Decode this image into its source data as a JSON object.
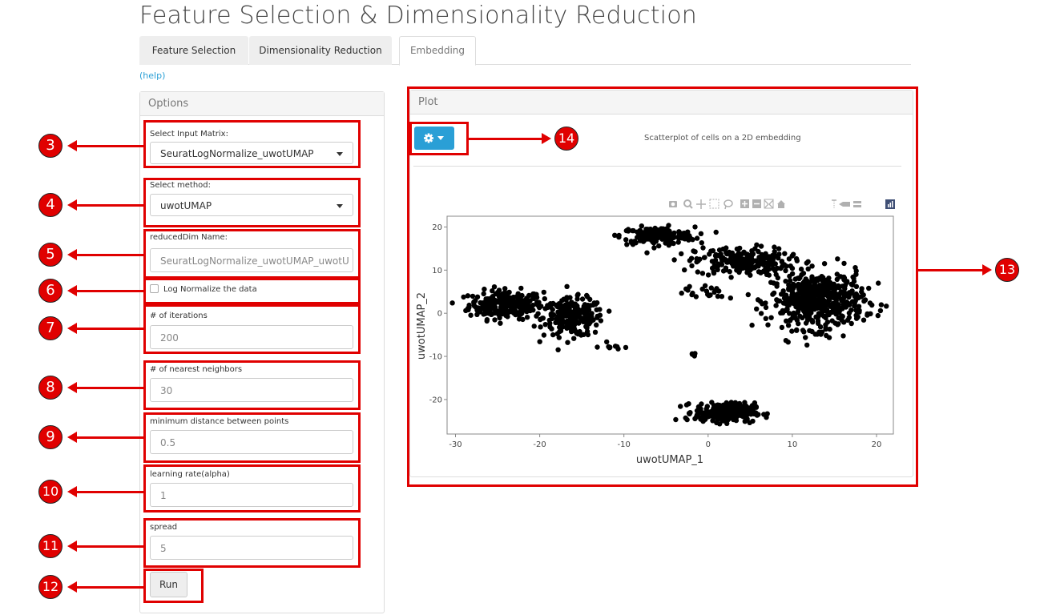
{
  "page_title": "Feature Selection & Dimensionality Reduction",
  "tabs": [
    {
      "label": "Feature Selection"
    },
    {
      "label": "Dimensionality Reduction"
    },
    {
      "label": "Embedding",
      "active": true
    }
  ],
  "help_link": "(help)",
  "options_panel": {
    "title": "Options",
    "input_matrix": {
      "label": "Select Input Matrix:",
      "value": "SeuratLogNormalize_uwotUMAP"
    },
    "method": {
      "label": "Select method:",
      "value": "uwotUMAP"
    },
    "reduced_dim": {
      "label": "reducedDim Name:",
      "value": "SeuratLogNormalize_uwotUMAP_uwotU"
    },
    "log_normalize": {
      "label": "Log Normalize the data",
      "checked": false
    },
    "iterations": {
      "label": "# of iterations",
      "value": "200"
    },
    "neighbors": {
      "label": "# of nearest neighbors",
      "value": "30"
    },
    "min_distance": {
      "label": "minimum distance between points",
      "value": "0.5"
    },
    "learning_rate": {
      "label": "learning rate(alpha)",
      "value": "1"
    },
    "spread": {
      "label": "spread",
      "value": "5"
    },
    "run_label": "Run"
  },
  "plot_panel": {
    "title": "Plot",
    "subtitle": "Scatterplot of cells on a 2D embedding",
    "settings_icon": "gear-icon",
    "toolbar_icons": [
      "camera-icon",
      "zoom-icon",
      "pan-icon",
      "box-select-icon",
      "lasso-icon",
      "zoom-in-icon",
      "zoom-out-icon",
      "autoscale-icon",
      "reset-axes-icon",
      "spike-lines-icon",
      "hover-closest-icon",
      "hover-compare-icon",
      "plotly-logo-icon"
    ]
  },
  "annotations": [
    "3",
    "4",
    "5",
    "6",
    "7",
    "8",
    "9",
    "10",
    "11",
    "12",
    "13",
    "14"
  ],
  "colors": {
    "accent": "#2a9fd6",
    "annotation_red": "#e00000",
    "points": "#000000"
  },
  "chart_data": {
    "type": "scatter",
    "xlabel": "uwotUMAP_1",
    "ylabel": "uwotUMAP_2",
    "xlim": [
      -31,
      22
    ],
    "ylim": [
      -28,
      22.5
    ],
    "xticks": [
      -30,
      -20,
      -10,
      0,
      10,
      20
    ],
    "yticks": [
      -20,
      -10,
      0,
      10,
      20
    ],
    "grid": false,
    "clusters": [
      {
        "center": [
          -24,
          2
        ],
        "spread": [
          4,
          3
        ],
        "count": 260
      },
      {
        "center": [
          -16,
          -1
        ],
        "spread": [
          3.2,
          4
        ],
        "count": 230
      },
      {
        "center": [
          -6,
          18
        ],
        "spread": [
          4,
          1.8
        ],
        "count": 170
      },
      {
        "center": [
          4,
          12
        ],
        "spread": [
          5,
          3
        ],
        "count": 220
      },
      {
        "center": [
          13,
          3
        ],
        "spread": [
          5,
          6
        ],
        "count": 520
      },
      {
        "center": [
          2,
          -23
        ],
        "spread": [
          3.2,
          2
        ],
        "count": 280
      },
      {
        "center": [
          -11,
          -8
        ],
        "spread": [
          1.5,
          0.5
        ],
        "count": 8
      },
      {
        "center": [
          -1.5,
          -9.5
        ],
        "spread": [
          0.4,
          0.3
        ],
        "count": 4
      },
      {
        "center": [
          -0.5,
          5
        ],
        "spread": [
          3,
          2
        ],
        "count": 20
      }
    ]
  }
}
